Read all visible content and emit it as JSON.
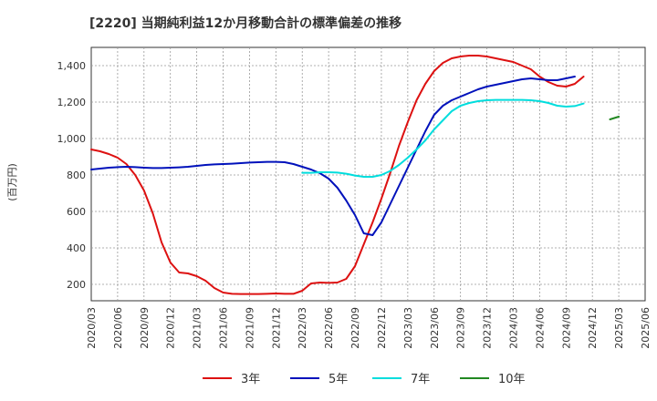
{
  "chart_data": {
    "type": "line",
    "title": "[2220]  当期純利益12か月移動合計の標準偏差の推移",
    "ylabel": "(百万円)",
    "xlabel": "",
    "ylim": [
      110,
      1500
    ],
    "yticks": [
      200,
      400,
      600,
      800,
      "1,000",
      "1,200",
      "1,400"
    ],
    "ytick_values": [
      200,
      400,
      600,
      800,
      1000,
      1200,
      1400
    ],
    "x_tick_labels": [
      "2020/03",
      "2020/06",
      "2020/09",
      "2020/12",
      "2021/03",
      "2021/06",
      "2021/09",
      "2021/12",
      "2022/03",
      "2022/06",
      "2022/09",
      "2022/12",
      "2023/03",
      "2023/06",
      "2023/09",
      "2023/12",
      "2024/03",
      "2024/06",
      "2024/09",
      "2024/12",
      "2025/03",
      "2025/06"
    ],
    "grid": true,
    "legend_position": "bottom",
    "series": [
      {
        "name": "3年",
        "color": "#dd1111",
        "start_index": 0,
        "values": [
          940,
          930,
          915,
          895,
          860,
          800,
          715,
          590,
          430,
          320,
          265,
          260,
          245,
          220,
          180,
          155,
          148,
          147,
          147,
          147,
          148,
          150,
          148,
          148,
          165,
          205,
          210,
          208,
          210,
          230,
          300,
          420,
          540,
          670,
          810,
          960,
          1090,
          1210,
          1300,
          1370,
          1415,
          1440,
          1450,
          1455,
          1455,
          1450,
          1440,
          1430,
          1420,
          1400,
          1380,
          1340,
          1310,
          1290,
          1285,
          1300,
          1340
        ]
      },
      {
        "name": "5年",
        "color": "#0011bb",
        "start_index": 0,
        "values": [
          830,
          835,
          840,
          843,
          845,
          843,
          840,
          838,
          838,
          840,
          842,
          845,
          850,
          855,
          858,
          860,
          862,
          865,
          868,
          870,
          872,
          872,
          870,
          860,
          845,
          830,
          810,
          780,
          730,
          660,
          580,
          480,
          470,
          540,
          640,
          740,
          840,
          940,
          1040,
          1130,
          1180,
          1210,
          1230,
          1250,
          1270,
          1285,
          1295,
          1305,
          1315,
          1325,
          1330,
          1325,
          1320,
          1320,
          1330,
          1340
        ]
      },
      {
        "name": "7年",
        "color": "#00dddd",
        "start_index": 24,
        "values": [
          812,
          812,
          815,
          815,
          813,
          807,
          797,
          790,
          790,
          800,
          822,
          855,
          895,
          940,
          990,
          1050,
          1100,
          1150,
          1180,
          1195,
          1205,
          1210,
          1212,
          1212,
          1212,
          1212,
          1210,
          1205,
          1195,
          1180,
          1175,
          1178,
          1192
        ]
      },
      {
        "name": "10年",
        "color": "#228822",
        "start_index": 59,
        "values": [
          1105,
          1120
        ]
      }
    ]
  }
}
